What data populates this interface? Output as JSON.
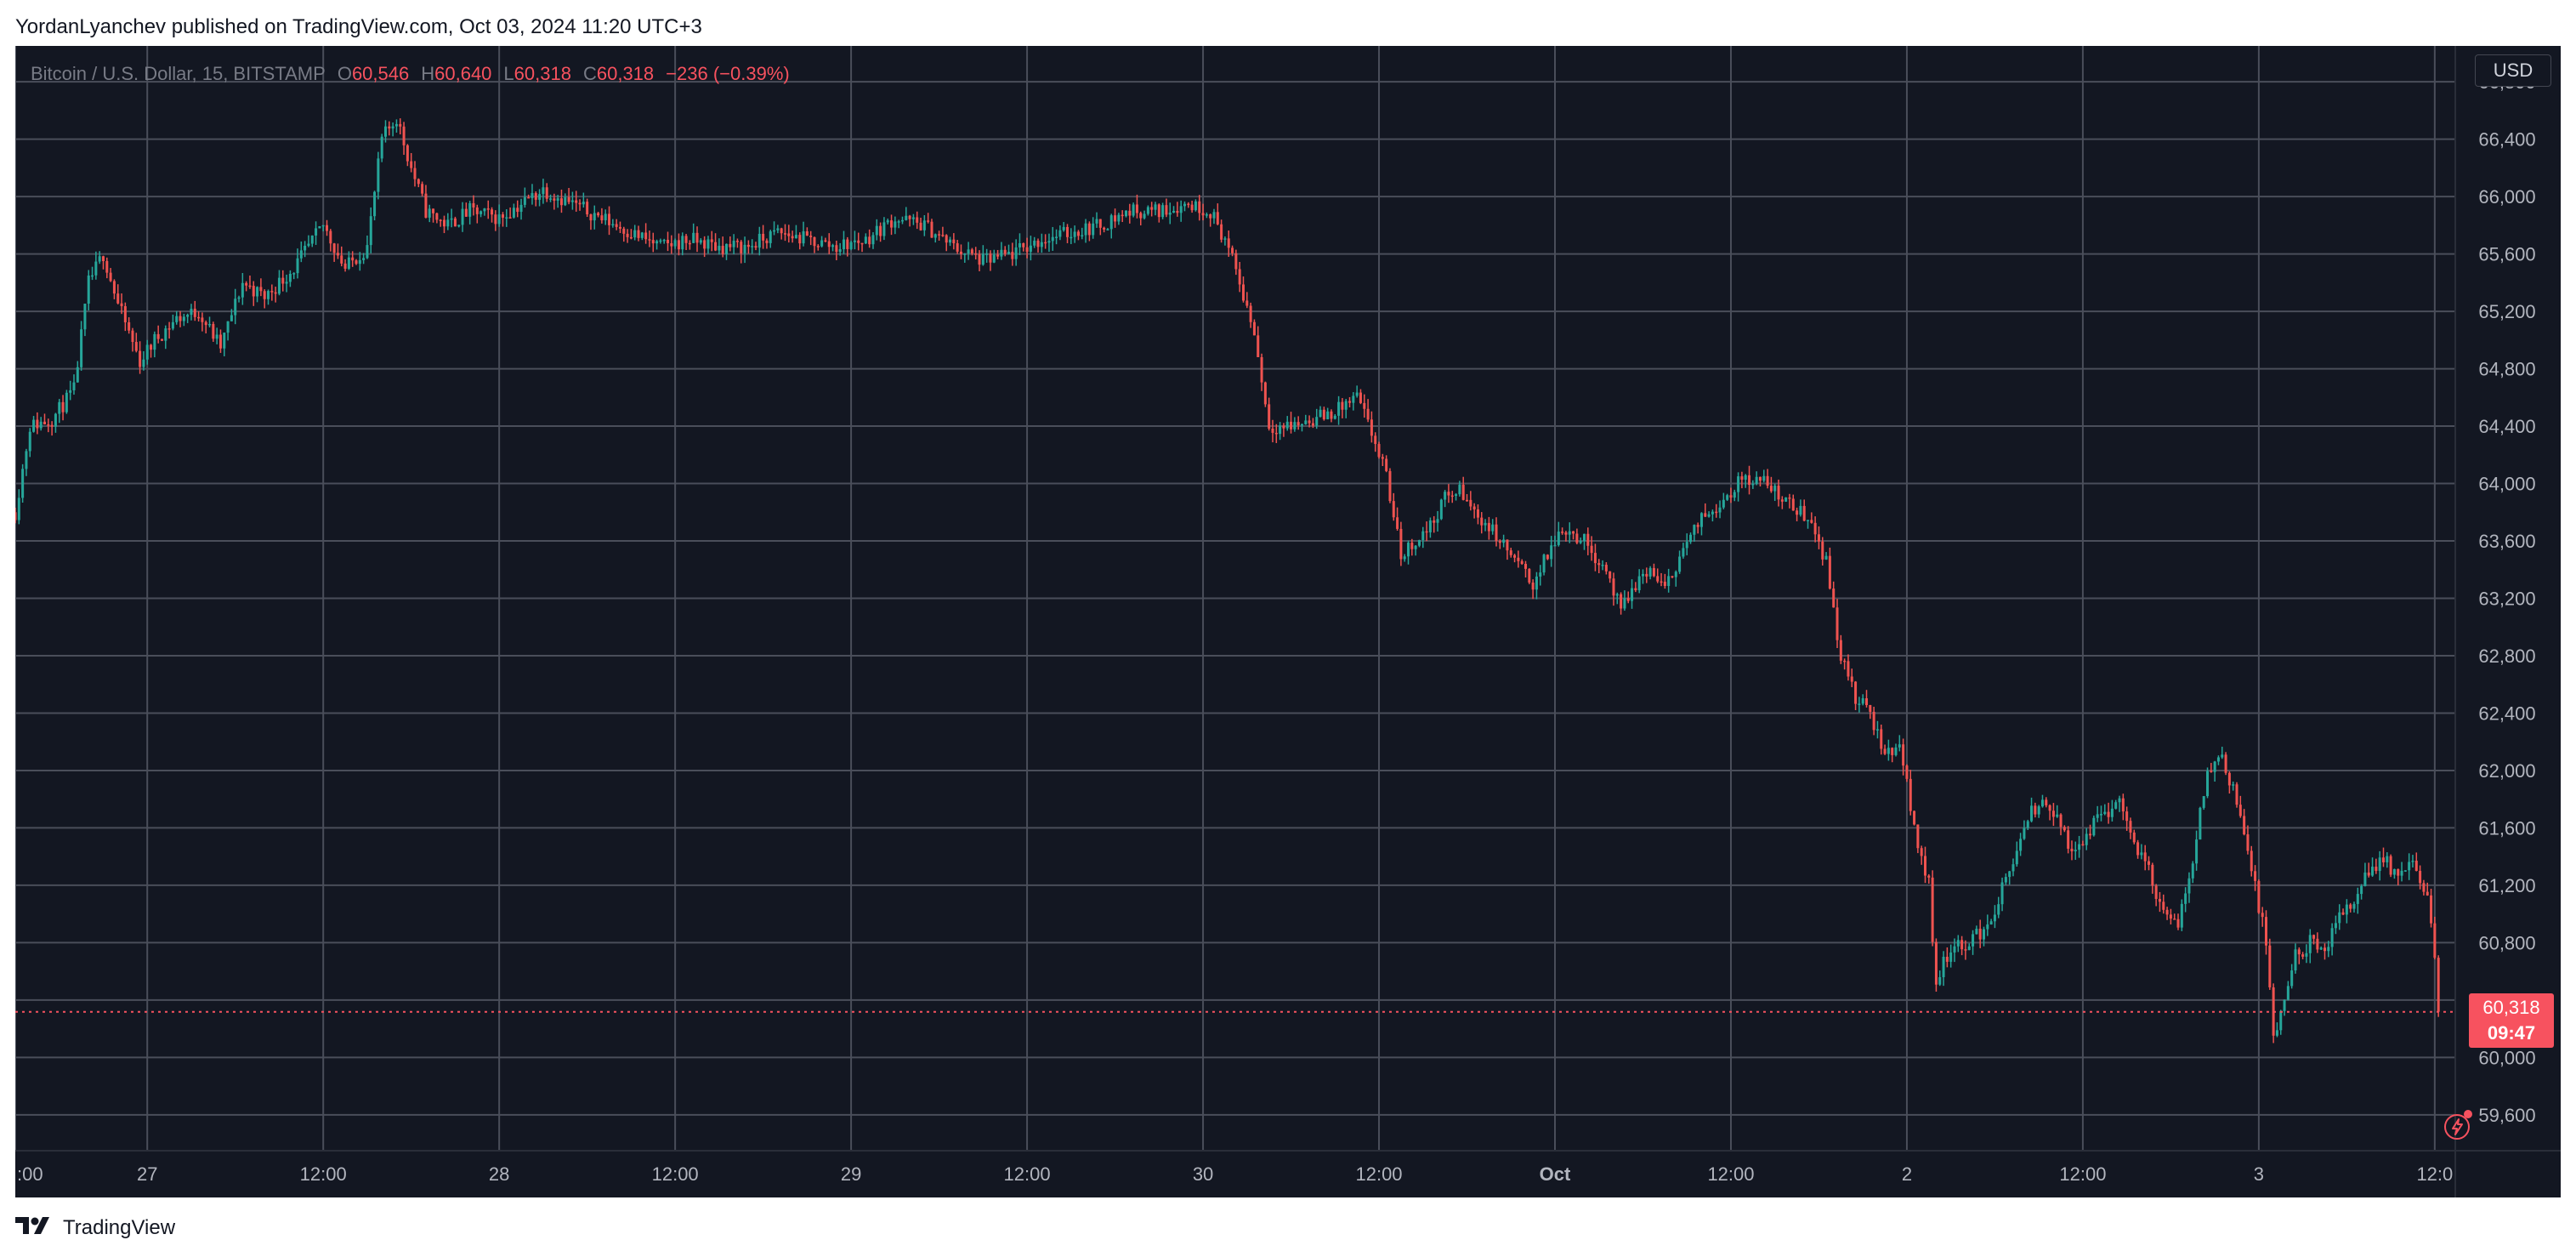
{
  "header": {
    "caption": "YordanLyanchev published on TradingView.com, Oct 03, 2024 11:20 UTC+3"
  },
  "legend": {
    "symbol": "Bitcoin / U.S. Dollar, 15, BITSTAMP",
    "o_label": "O",
    "o_value": "60,546",
    "h_label": "H",
    "h_value": "60,640",
    "l_label": "L",
    "l_value": "60,318",
    "c_label": "C",
    "c_value": "60,318",
    "change": "−236 (−0.39%)"
  },
  "currency": "USD",
  "last_price": {
    "price": "60,318",
    "countdown": "09:47"
  },
  "footer": {
    "brand": "TradingView"
  },
  "colors": {
    "up": "#26a69a",
    "down": "#ef5350",
    "background": "#131722",
    "grid": "#4a4e5a",
    "label": "#b2b5be",
    "last_price": "#f7525f"
  },
  "icons": {
    "alert": "lightning-alert-icon",
    "brand": "tradingview-logo-icon"
  },
  "chart_data": {
    "type": "candlestick",
    "ylim": [
      59350,
      67050
    ],
    "y_ticks": [
      59600,
      60000,
      60400,
      60800,
      61200,
      61600,
      62000,
      62400,
      62800,
      63200,
      63600,
      64000,
      64400,
      64800,
      65200,
      65600,
      66000,
      66400,
      66800
    ],
    "x_ticks": [
      {
        "t": 0,
        "label": ":00",
        "bold": false
      },
      {
        "t": 9,
        "label": "27",
        "bold": false
      },
      {
        "t": 21,
        "label": "12:00",
        "bold": false
      },
      {
        "t": 33,
        "label": "28",
        "bold": false
      },
      {
        "t": 45,
        "label": "12:00",
        "bold": false
      },
      {
        "t": 57,
        "label": "29",
        "bold": false
      },
      {
        "t": 69,
        "label": "12:00",
        "bold": false
      },
      {
        "t": 81,
        "label": "30",
        "bold": false
      },
      {
        "t": 93,
        "label": "12:00",
        "bold": false
      },
      {
        "t": 105,
        "label": "Oct",
        "bold": true
      },
      {
        "t": 117,
        "label": "12:00",
        "bold": false
      },
      {
        "t": 129,
        "label": "2",
        "bold": false
      },
      {
        "t": 141,
        "label": "12:00",
        "bold": false
      },
      {
        "t": 153,
        "label": "3",
        "bold": false
      },
      {
        "t": 165,
        "label": "12:0",
        "bold": false
      }
    ],
    "x_range": [
      0,
      166.4
    ],
    "last_price": 60318,
    "price_path": [
      [
        0,
        63800
      ],
      [
        1,
        64400
      ],
      [
        2.5,
        64450
      ],
      [
        4,
        64650
      ],
      [
        5,
        65400
      ],
      [
        6,
        65600
      ],
      [
        7,
        65250
      ],
      [
        8.5,
        64850
      ],
      [
        9.5,
        65000
      ],
      [
        11,
        65150
      ],
      [
        12.5,
        65200
      ],
      [
        14,
        64950
      ],
      [
        15.5,
        65400
      ],
      [
        17,
        65300
      ],
      [
        19,
        65500
      ],
      [
        21,
        65800
      ],
      [
        22.5,
        65500
      ],
      [
        24,
        65650
      ],
      [
        25,
        66400
      ],
      [
        26,
        66550
      ],
      [
        27,
        66200
      ],
      [
        28,
        65900
      ],
      [
        29.5,
        65800
      ],
      [
        31,
        65900
      ],
      [
        33,
        65850
      ],
      [
        34.5,
        65950
      ],
      [
        36,
        66050
      ],
      [
        38,
        65950
      ],
      [
        40,
        65850
      ],
      [
        42,
        65750
      ],
      [
        44,
        65650
      ],
      [
        46,
        65700
      ],
      [
        48,
        65650
      ],
      [
        50,
        65650
      ],
      [
        52,
        65750
      ],
      [
        54,
        65700
      ],
      [
        56,
        65650
      ],
      [
        58,
        65700
      ],
      [
        60,
        65850
      ],
      [
        62,
        65800
      ],
      [
        64,
        65650
      ],
      [
        66,
        65550
      ],
      [
        68,
        65600
      ],
      [
        70,
        65700
      ],
      [
        72,
        65750
      ],
      [
        74,
        65800
      ],
      [
        76,
        65900
      ],
      [
        78,
        65900
      ],
      [
        80,
        65950
      ],
      [
        81.5,
        65900
      ],
      [
        82.5,
        65700
      ],
      [
        83.5,
        65400
      ],
      [
        84.5,
        65050
      ],
      [
        85.5,
        64400
      ],
      [
        87,
        64400
      ],
      [
        88.5,
        64450
      ],
      [
        90,
        64500
      ],
      [
        91.5,
        64600
      ],
      [
        92.5,
        64350
      ],
      [
        93.5,
        64050
      ],
      [
        94.5,
        63500
      ],
      [
        95.5,
        63600
      ],
      [
        96.5,
        63700
      ],
      [
        97.5,
        63900
      ],
      [
        98.5,
        63950
      ],
      [
        99.5,
        63800
      ],
      [
        100.5,
        63700
      ],
      [
        102,
        63500
      ],
      [
        103.5,
        63300
      ],
      [
        104.5,
        63500
      ],
      [
        105.5,
        63700
      ],
      [
        107,
        63600
      ],
      [
        108.5,
        63400
      ],
      [
        109.5,
        63100
      ],
      [
        110.5,
        63300
      ],
      [
        111.5,
        63400
      ],
      [
        112.5,
        63250
      ],
      [
        113.5,
        63500
      ],
      [
        115,
        63750
      ],
      [
        116.5,
        63900
      ],
      [
        118,
        64050
      ],
      [
        119.5,
        64000
      ],
      [
        121,
        63850
      ],
      [
        122.5,
        63750
      ],
      [
        123.5,
        63450
      ],
      [
        124.5,
        62800
      ],
      [
        125.5,
        62500
      ],
      [
        126.5,
        62400
      ],
      [
        127.5,
        62100
      ],
      [
        128.5,
        62200
      ],
      [
        129.5,
        61600
      ],
      [
        130.5,
        61200
      ],
      [
        131,
        60500
      ],
      [
        131.5,
        60700
      ],
      [
        133,
        60800
      ],
      [
        134.5,
        60900
      ],
      [
        136,
        61300
      ],
      [
        137.5,
        61700
      ],
      [
        138.5,
        61800
      ],
      [
        139.5,
        61600
      ],
      [
        140.5,
        61400
      ],
      [
        141.5,
        61600
      ],
      [
        142.5,
        61700
      ],
      [
        143.5,
        61800
      ],
      [
        144.5,
        61500
      ],
      [
        145.5,
        61300
      ],
      [
        146.5,
        61000
      ],
      [
        147.5,
        60900
      ],
      [
        148.5,
        61400
      ],
      [
        149.5,
        62000
      ],
      [
        150.5,
        62100
      ],
      [
        151.5,
        61800
      ],
      [
        152.5,
        61300
      ],
      [
        153.5,
        60800
      ],
      [
        154,
        60100
      ],
      [
        154.5,
        60300
      ],
      [
        155.5,
        60700
      ],
      [
        156.5,
        60800
      ],
      [
        157.5,
        60700
      ],
      [
        158.5,
        61000
      ],
      [
        159.5,
        61100
      ],
      [
        160.5,
        61300
      ],
      [
        161.5,
        61400
      ],
      [
        162.5,
        61250
      ],
      [
        163.5,
        61350
      ],
      [
        164.5,
        61100
      ],
      [
        165,
        60700
      ],
      [
        165.3,
        60318
      ]
    ]
  }
}
